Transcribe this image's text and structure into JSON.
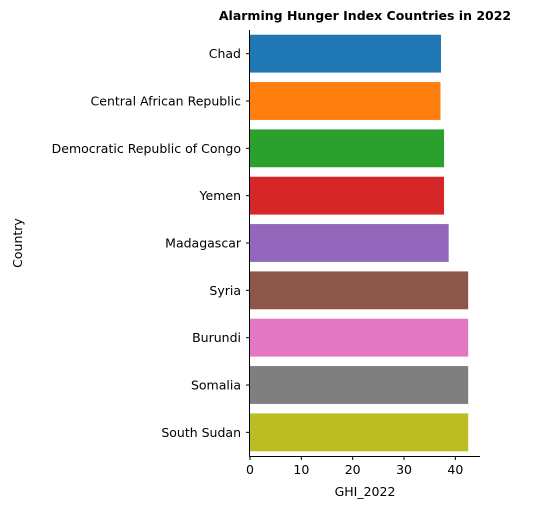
{
  "chart_data": {
    "type": "bar",
    "orientation": "horizontal",
    "title": "Alarming Hunger Index Countries in 2022",
    "xlabel": "GHI_2022",
    "ylabel": "Country",
    "xlim": [
      0,
      44.8
    ],
    "xticks": [
      0,
      10,
      20,
      30,
      40
    ],
    "grid": false,
    "categories": [
      "Chad",
      "Central African Republic",
      "Democratic Republic of Congo",
      "Yemen",
      "Madagascar",
      "Syria",
      "Burundi",
      "Somalia",
      "South Sudan"
    ],
    "values": [
      37.2,
      37.1,
      37.8,
      37.8,
      38.7,
      42.5,
      42.5,
      42.5,
      42.5
    ],
    "colors": [
      "#1f77b4",
      "#ff7f0e",
      "#2ca02c",
      "#d62728",
      "#9467bd",
      "#8c564b",
      "#e377c2",
      "#7f7f7f",
      "#bcbd22"
    ]
  }
}
